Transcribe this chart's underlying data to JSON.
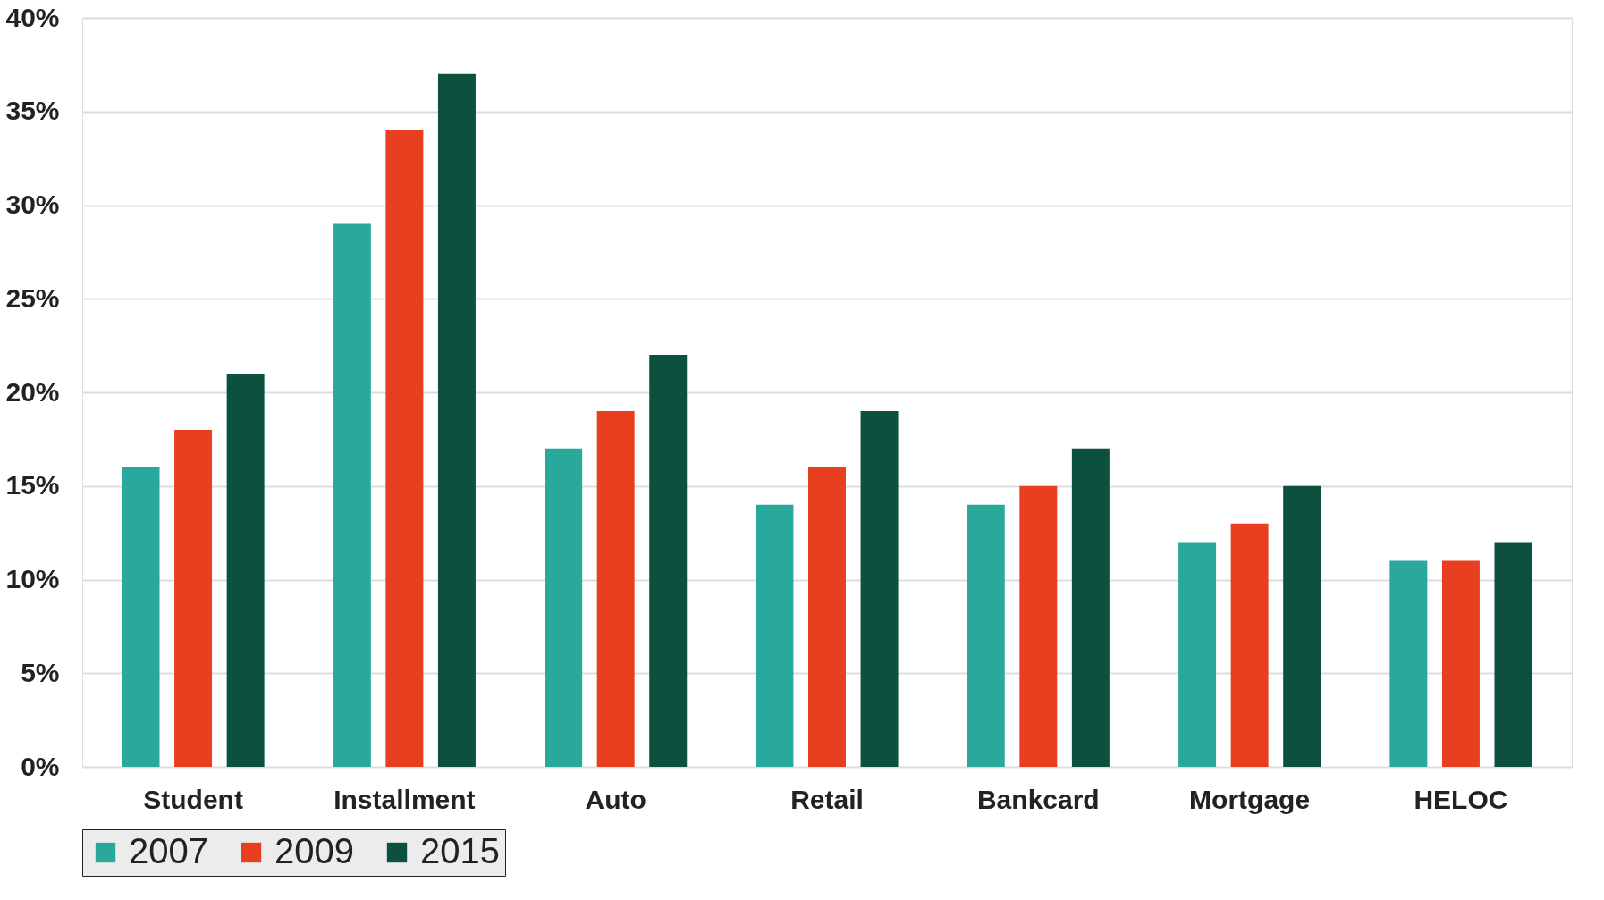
{
  "chart_data": {
    "type": "bar",
    "categories": [
      "Student",
      "Installment",
      "Auto",
      "Retail",
      "Bankcard",
      "Mortgage",
      "HELOC"
    ],
    "series": [
      {
        "name": "2007",
        "color": "#2aa89b",
        "values": [
          16,
          29,
          17,
          14,
          14,
          12,
          11
        ]
      },
      {
        "name": "2009",
        "color": "#e83f20",
        "values": [
          18,
          34,
          19,
          16,
          15,
          13,
          11
        ]
      },
      {
        "name": "2015",
        "color": "#0c5140",
        "values": [
          21,
          37,
          22,
          19,
          17,
          15,
          12
        ]
      }
    ],
    "ylim": [
      0,
      40
    ],
    "yticks": [
      {
        "value": 0,
        "label": "0%"
      },
      {
        "value": 5,
        "label": "5%"
      },
      {
        "value": 10,
        "label": "10%"
      },
      {
        "value": 15,
        "label": "15%"
      },
      {
        "value": 20,
        "label": "20%"
      },
      {
        "value": 25,
        "label": "25%"
      },
      {
        "value": 30,
        "label": "30%"
      },
      {
        "value": 35,
        "label": "35%"
      },
      {
        "value": 40,
        "label": "40%"
      }
    ],
    "grid": "y",
    "legend": "bottom"
  }
}
